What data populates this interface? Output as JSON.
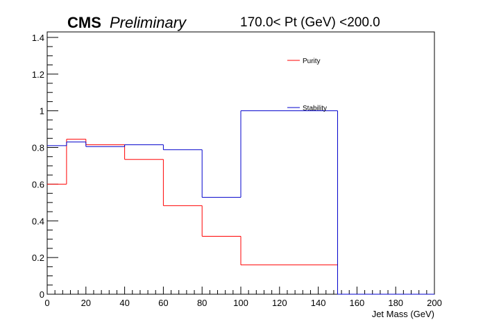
{
  "chart_data": {
    "type": "line",
    "title_main": "CMS",
    "title_italic": "Preliminary",
    "title_range": "170.0< Pt (GeV) <200.0",
    "xlabel": "Jet Mass (GeV)",
    "ylabel": "",
    "xlim": [
      0,
      200
    ],
    "ylim": [
      0,
      1.43
    ],
    "x_ticks": [
      "0",
      "20",
      "40",
      "60",
      "80",
      "100",
      "120",
      "140",
      "160",
      "180",
      "200"
    ],
    "y_ticks": [
      "0",
      "0.2",
      "0.4",
      "0.6",
      "0.8",
      "1",
      "1.2",
      "1.4"
    ],
    "bin_edges": [
      0,
      10,
      20,
      40,
      60,
      80,
      100,
      150,
      200
    ],
    "series": [
      {
        "name": "Purity",
        "color": "#ff0000",
        "values": [
          0.6,
          0.845,
          0.815,
          0.735,
          0.483,
          0.316,
          0.16,
          0.0
        ]
      },
      {
        "name": "Stability",
        "color": "#0000cc",
        "values": [
          0.81,
          0.83,
          0.805,
          0.815,
          0.788,
          0.528,
          1.0,
          0.0
        ]
      }
    ],
    "spike": {
      "x": 150,
      "y": 0.9,
      "color": "#0000cc"
    },
    "legend_placement": "top-right inside plot",
    "grid": false
  }
}
